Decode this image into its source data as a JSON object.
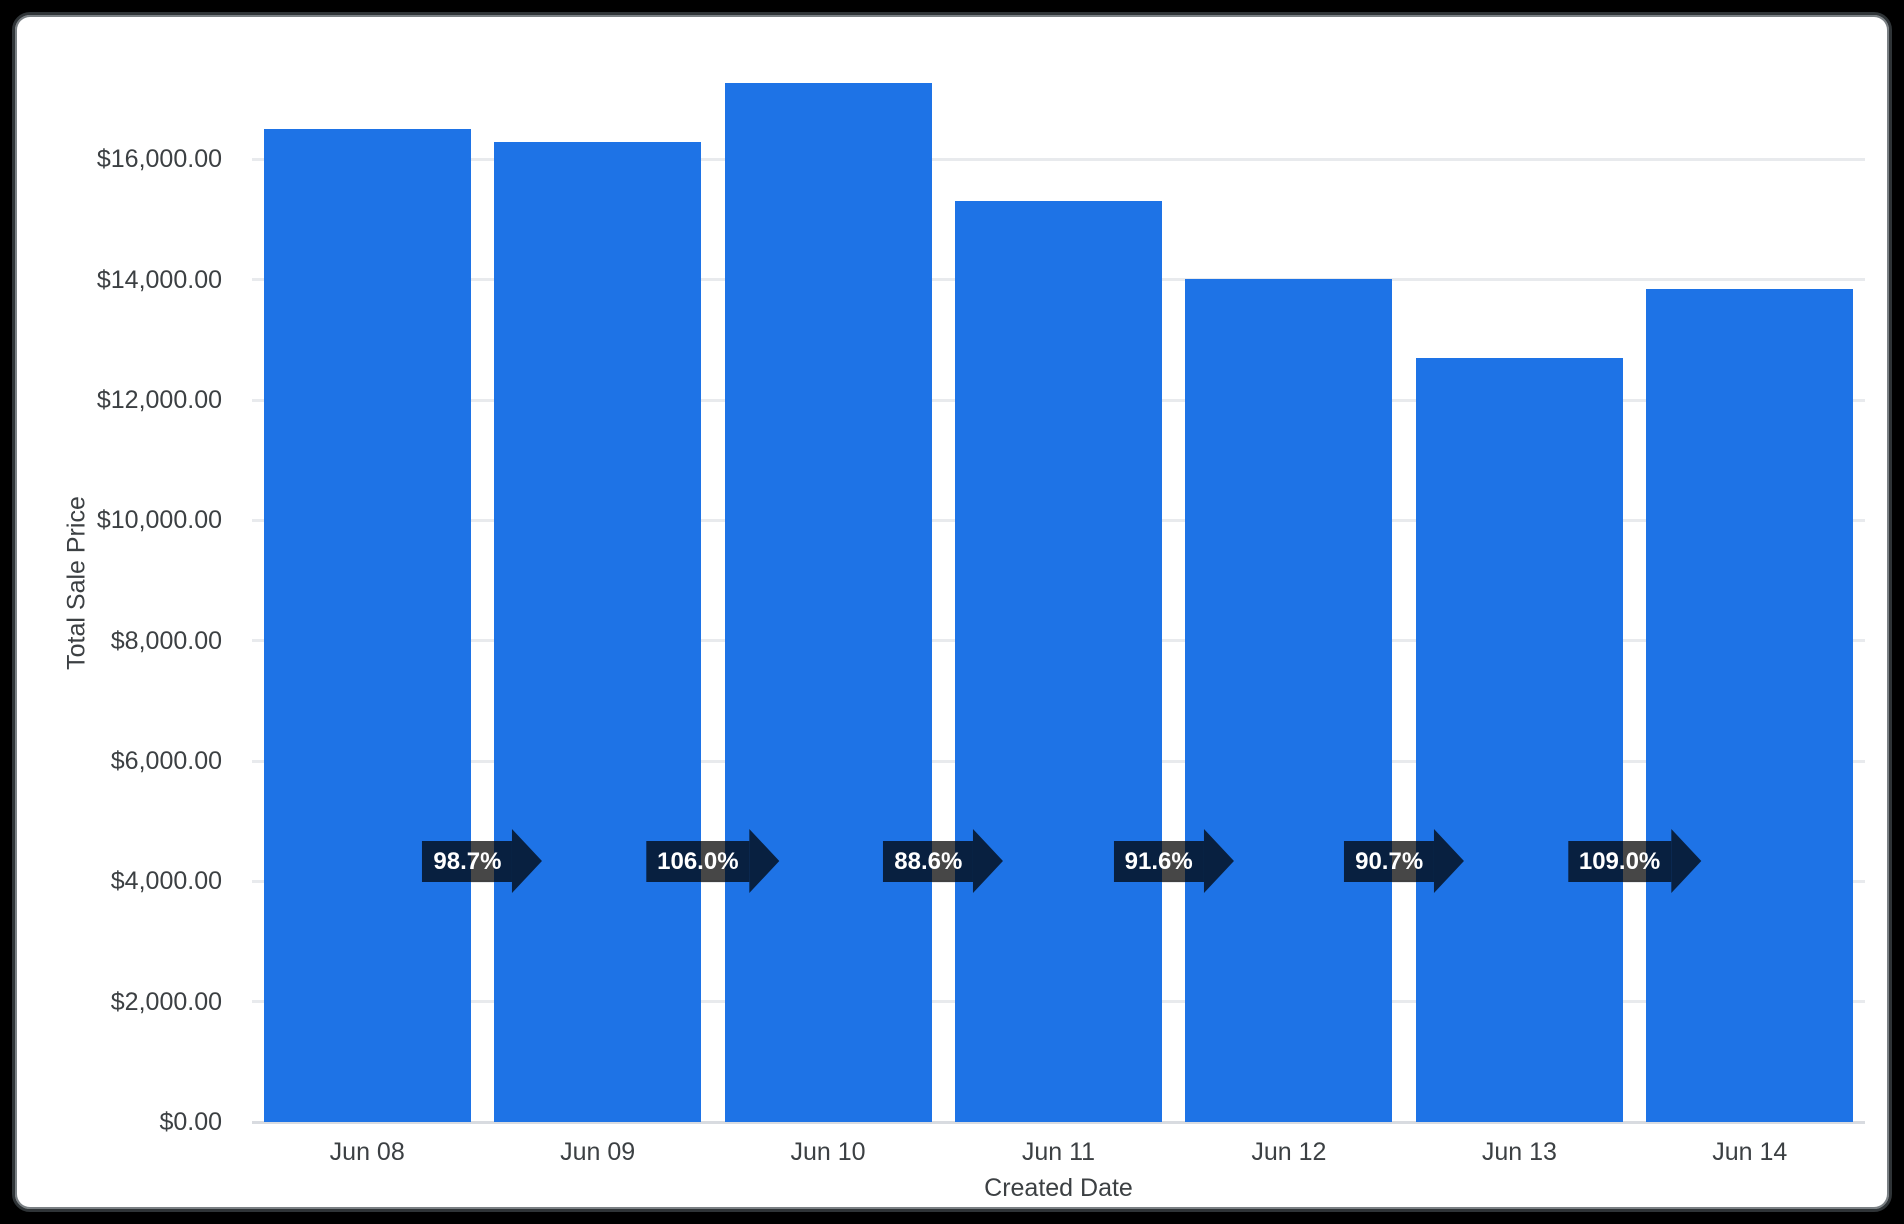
{
  "chart_data": {
    "type": "bar",
    "title": "",
    "xlabel": "Created Date",
    "ylabel": "Total Sale Price",
    "categories": [
      "Jun 08",
      "Jun 09",
      "Jun 10",
      "Jun 11",
      "Jun 12",
      "Jun 13",
      "Jun 14"
    ],
    "values": [
      16500,
      16290,
      17270,
      15300,
      14010,
      12700,
      13840
    ],
    "pct_change_labels": [
      "98.7%",
      "106.0%",
      "88.6%",
      "91.6%",
      "90.7%",
      "109.0%"
    ],
    "y_ticks": [
      {
        "value": 0,
        "label": "$0.00"
      },
      {
        "value": 2000,
        "label": "$2,000.00"
      },
      {
        "value": 4000,
        "label": "$4,000.00"
      },
      {
        "value": 6000,
        "label": "$6,000.00"
      },
      {
        "value": 8000,
        "label": "$8,000.00"
      },
      {
        "value": 10000,
        "label": "$10,000.00"
      },
      {
        "value": 12000,
        "label": "$12,000.00"
      },
      {
        "value": 14000,
        "label": "$14,000.00"
      },
      {
        "value": 16000,
        "label": "$16,000.00"
      }
    ],
    "ylim": [
      0,
      17900
    ],
    "grid": "horizontal",
    "legend": "none",
    "arrow_center_value": 4330,
    "colors": {
      "bar": "#1e73e6",
      "arrow_fill": "rgba(0,0,0,0.72)",
      "arrow_text": "#ffffff",
      "axis_text": "#3c4043",
      "gridline": "#e8eaed",
      "baseline": "#d8dbe0",
      "card_background": "#ffffff",
      "outer_background": "#000000",
      "frame_border": "#2f3437",
      "frame_edge": "#7a8084"
    }
  }
}
